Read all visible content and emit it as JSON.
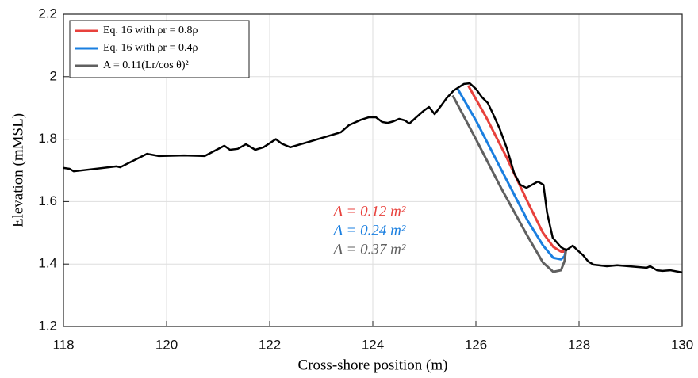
{
  "chart_data": {
    "type": "line",
    "xlabel": "Cross-shore position (m)",
    "ylabel": "Elevation (mMSL)",
    "xlim": [
      118,
      130
    ],
    "xticks": [
      118,
      120,
      122,
      124,
      126,
      128,
      130
    ],
    "ylim": [
      1.2,
      2.2
    ],
    "yticks": [
      1.2,
      1.4,
      1.6,
      1.8,
      2,
      2.2
    ],
    "grid": true,
    "legend": "upper left",
    "profile": {
      "color": "#000000",
      "x": [
        118,
        118.12,
        118.2,
        119.03,
        119.1,
        119.62,
        119.85,
        120.34,
        120.74,
        121.12,
        121.23,
        121.38,
        121.54,
        121.72,
        121.88,
        122.12,
        122.23,
        122.4,
        123.38,
        123.54,
        123.77,
        123.92,
        124.06,
        124.18,
        124.29,
        124.4,
        124.51,
        124.62,
        124.71,
        124.83,
        124.98,
        125.09,
        125.2,
        125.32,
        125.43,
        125.57,
        125.77,
        125.88,
        126.0,
        126.12,
        126.23,
        126.34,
        126.46,
        126.6,
        126.74,
        126.86,
        126.98,
        127.09,
        127.2,
        127.31,
        127.38,
        127.49,
        127.65,
        127.75,
        127.88,
        127.97,
        128.08,
        128.18,
        128.28,
        128.38,
        128.54,
        128.74,
        129.31,
        129.38,
        129.51,
        129.62,
        129.77,
        130
      ],
      "values": [
        1.708,
        1.705,
        1.697,
        1.713,
        1.71,
        1.753,
        1.746,
        1.748,
        1.746,
        1.779,
        1.766,
        1.769,
        1.784,
        1.766,
        1.774,
        1.8,
        1.786,
        1.774,
        1.822,
        1.845,
        1.862,
        1.87,
        1.87,
        1.855,
        1.852,
        1.857,
        1.865,
        1.86,
        1.85,
        1.868,
        1.89,
        1.903,
        1.88,
        1.906,
        1.931,
        1.956,
        1.977,
        1.979,
        1.961,
        1.934,
        1.916,
        1.878,
        1.834,
        1.771,
        1.692,
        1.654,
        1.644,
        1.654,
        1.664,
        1.654,
        1.565,
        1.484,
        1.454,
        1.444,
        1.459,
        1.444,
        1.428,
        1.408,
        1.398,
        1.396,
        1.393,
        1.396,
        1.388,
        1.393,
        1.38,
        1.378,
        1.38,
        1.373
      ]
    },
    "series": [
      {
        "name": "Eq. 16 with ρr = 0.8ρ",
        "color": "#e8413c",
        "x": [
          125.85,
          126.2,
          126.6,
          127.0,
          127.3,
          127.5,
          127.65,
          127.72,
          127.75
        ],
        "values": [
          1.972,
          1.87,
          1.74,
          1.6,
          1.5,
          1.455,
          1.44,
          1.44,
          1.45
        ]
      },
      {
        "name": "Eq. 16 with ρr = 0.4ρ",
        "color": "#1a7fe0",
        "x": [
          125.65,
          126.0,
          126.5,
          127.0,
          127.3,
          127.5,
          127.65,
          127.72,
          127.75
        ],
        "values": [
          1.96,
          1.86,
          1.7,
          1.54,
          1.46,
          1.42,
          1.415,
          1.425,
          1.45
        ]
      },
      {
        "name": "A = 0.11(Lr/cos θ)²",
        "color": "#606060",
        "x": [
          125.55,
          126.0,
          126.5,
          127.0,
          127.3,
          127.5,
          127.65,
          127.72,
          127.75
        ],
        "values": [
          1.94,
          1.8,
          1.64,
          1.49,
          1.405,
          1.375,
          1.38,
          1.41,
          1.45
        ]
      }
    ],
    "annotations": [
      {
        "text": "A = 0.12 m²",
        "color": "#e8413c"
      },
      {
        "text": "A = 0.24 m²",
        "color": "#1a7fe0"
      },
      {
        "text": "A = 0.37 m²",
        "color": "#606060"
      }
    ]
  }
}
